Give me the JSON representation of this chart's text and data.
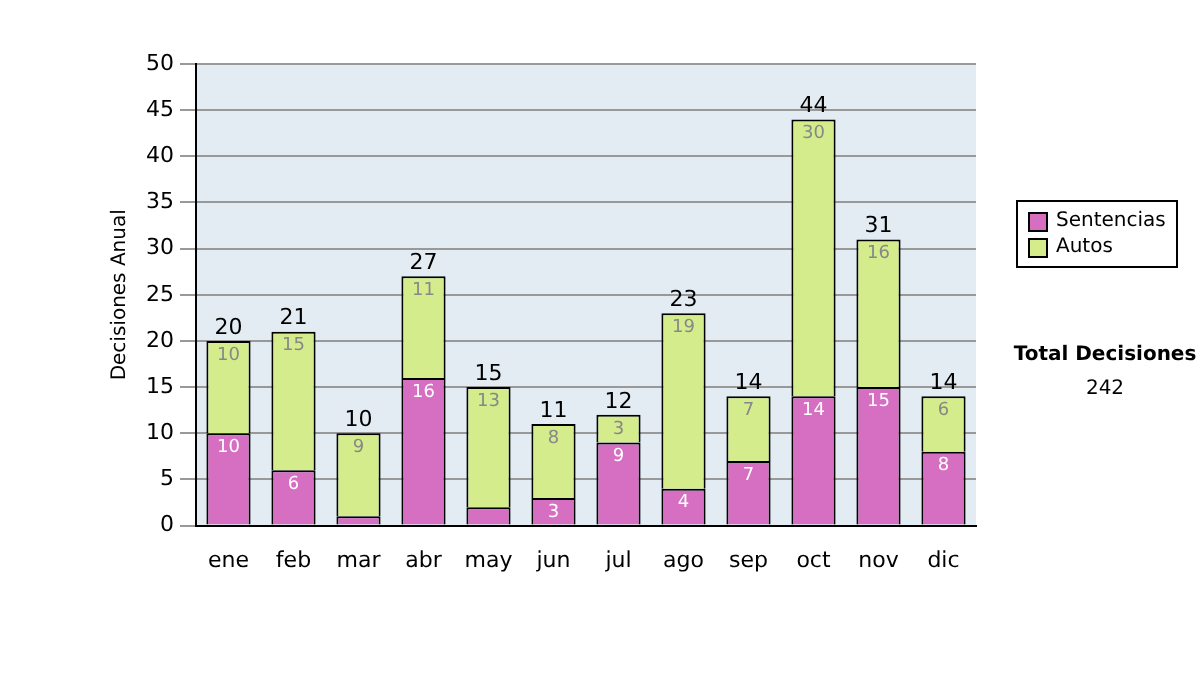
{
  "chart_data": {
    "type": "bar",
    "stacked": true,
    "ylabel": "Decisiones Anual",
    "categories": [
      "ene",
      "feb",
      "mar",
      "abr",
      "may",
      "jun",
      "jul",
      "ago",
      "sep",
      "oct",
      "nov",
      "dic"
    ],
    "series": [
      {
        "name": "Sentencias",
        "color": "#d66fc2",
        "values": [
          10,
          6,
          1,
          16,
          2,
          3,
          9,
          4,
          7,
          14,
          15,
          8
        ],
        "value_labels": [
          "10",
          "6",
          null,
          "16",
          null,
          "3",
          "9",
          "4",
          "7",
          "14",
          "15",
          "8"
        ]
      },
      {
        "name": "Autos",
        "color": "#d5ec8c",
        "values": [
          10,
          15,
          9,
          11,
          13,
          8,
          3,
          19,
          7,
          30,
          16,
          6
        ],
        "value_labels": [
          "10",
          "15",
          "9",
          "11",
          "13",
          "8",
          "3",
          "19",
          "7",
          "30",
          "16",
          "6"
        ]
      }
    ],
    "totals": [
      "20",
      "21",
      "10",
      "27",
      "15",
      "11",
      "12",
      "23",
      "14",
      "44",
      "31",
      "14"
    ],
    "ylim": [
      0,
      50
    ],
    "yticks": [
      0,
      5,
      10,
      15,
      20,
      25,
      30,
      35,
      40,
      45,
      50
    ],
    "grid": "y",
    "legend": "right",
    "annotations": [
      "Total Decisiones",
      "242"
    ]
  }
}
